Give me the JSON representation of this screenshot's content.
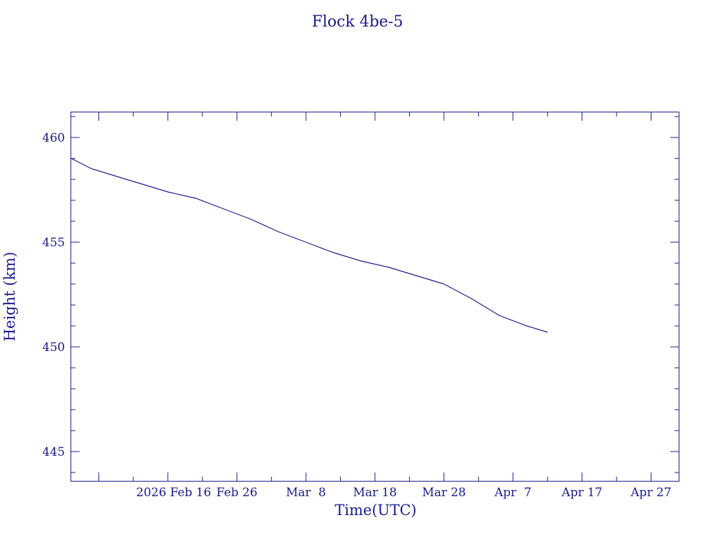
{
  "chart_data": {
    "type": "line",
    "title": "Flock 4be-5",
    "xlabel": "Time(UTC)",
    "ylabel": "Height (km)",
    "xlim": [
      "2026-02-02",
      "2026-05-01"
    ],
    "ylim": [
      443.6,
      461.2
    ],
    "xticks": [
      {
        "date": "2026-02-16",
        "label": "2026 Feb 16"
      },
      {
        "date": "2026-02-26",
        "label": "Feb 26"
      },
      {
        "date": "2026-03-08",
        "label": "Mar  8"
      },
      {
        "date": "2026-03-18",
        "label": "Mar 18"
      },
      {
        "date": "2026-03-28",
        "label": "Mar 28"
      },
      {
        "date": "2026-04-07",
        "label": "Apr  7"
      },
      {
        "date": "2026-04-17",
        "label": "Apr 17"
      },
      {
        "date": "2026-04-27",
        "label": "Apr 27"
      }
    ],
    "yticks": [
      445,
      450,
      455,
      460
    ],
    "series": [
      {
        "color": "#1a1a8c",
        "x": [
          "2026-02-02",
          "2026-02-05",
          "2026-02-09",
          "2026-02-13",
          "2026-02-16",
          "2026-02-20",
          "2026-02-24",
          "2026-02-28",
          "2026-03-04",
          "2026-03-08",
          "2026-03-12",
          "2026-03-16",
          "2026-03-20",
          "2026-03-24",
          "2026-03-28",
          "2026-04-01",
          "2026-04-05",
          "2026-04-09",
          "2026-04-12"
        ],
        "y": [
          459.0,
          458.5,
          458.1,
          457.7,
          457.4,
          457.1,
          456.6,
          456.1,
          455.5,
          455.0,
          454.5,
          454.1,
          453.8,
          453.4,
          453.0,
          452.3,
          451.5,
          451.0,
          450.7
        ]
      }
    ]
  }
}
